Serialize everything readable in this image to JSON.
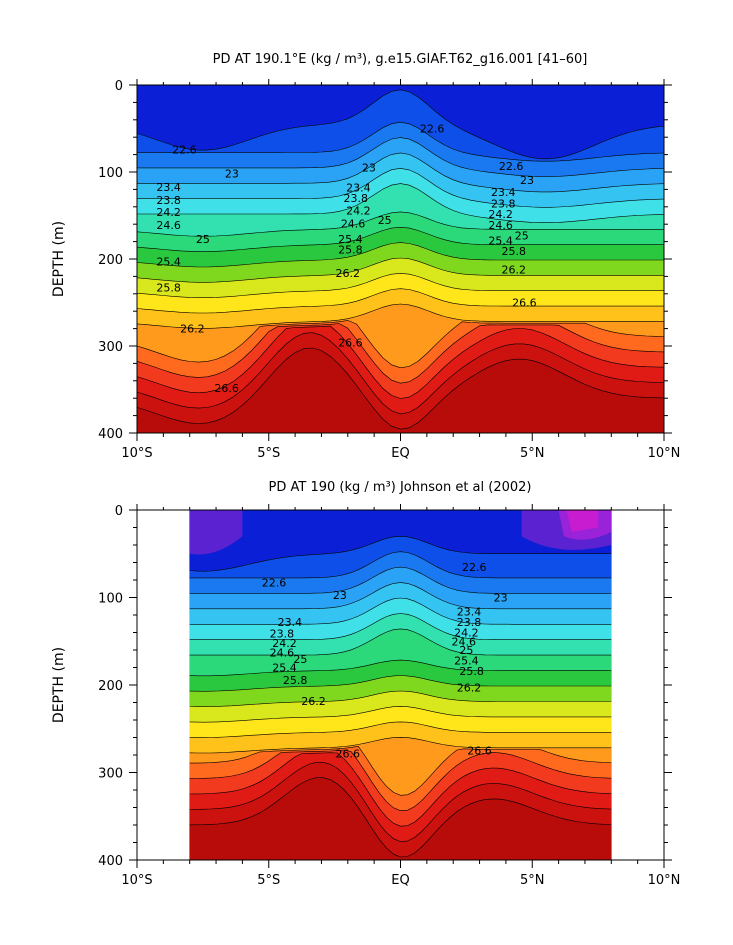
{
  "colors": {
    "levels": [
      "#0a1fd6",
      "#0d4fe8",
      "#1a78f0",
      "#2aa2f5",
      "#35c3f2",
      "#3fe0e8",
      "#33e0b0",
      "#2bd87a",
      "#29c83f",
      "#7fd81e",
      "#d8e81c",
      "#ffe61a",
      "#ffc21a",
      "#ff9a1c",
      "#ff6a1e",
      "#f23a1e",
      "#e01a14",
      "#cc120f",
      "#b80c0a"
    ],
    "purple": [
      "#5a22d0",
      "#9a22d8",
      "#c81cd0"
    ],
    "axis": "#000000"
  },
  "chart_data": [
    {
      "type": "contour",
      "title": "PD AT 190.1°E (kg / m³), g.e15.GIAF.T62_g16.001 [41–60]",
      "xlabel": "",
      "ylabel": "DEPTH (m)",
      "xlim": [
        -10,
        10
      ],
      "ylim": [
        400,
        0
      ],
      "x_ticks": [
        -10,
        -5,
        0,
        5,
        10
      ],
      "x_tick_labels": [
        "10°S",
        "5°S",
        "EQ",
        "5°N",
        "10°N"
      ],
      "y_ticks": [
        0,
        100,
        200,
        300,
        400
      ],
      "y_tick_labels": [
        "0",
        "100",
        "200",
        "300",
        "400"
      ],
      "data_extent_x": [
        -10,
        10
      ],
      "contour_labels": [
        {
          "text": "22.6",
          "x": -8.2,
          "y": 74
        },
        {
          "text": "22.6",
          "x": 1.2,
          "y": 50
        },
        {
          "text": "22.6",
          "x": 4.2,
          "y": 93
        },
        {
          "text": "23",
          "x": -6.4,
          "y": 102
        },
        {
          "text": "23",
          "x": -1.2,
          "y": 95
        },
        {
          "text": "23",
          "x": 4.8,
          "y": 109
        },
        {
          "text": "23.4",
          "x": -8.8,
          "y": 117
        },
        {
          "text": "23.4",
          "x": -1.6,
          "y": 118
        },
        {
          "text": "23.4",
          "x": 3.9,
          "y": 123
        },
        {
          "text": "23.8",
          "x": -8.8,
          "y": 132
        },
        {
          "text": "23.8",
          "x": -1.7,
          "y": 130
        },
        {
          "text": "23.8",
          "x": 3.9,
          "y": 136
        },
        {
          "text": "24.2",
          "x": -8.8,
          "y": 146
        },
        {
          "text": "24.2",
          "x": -1.6,
          "y": 144
        },
        {
          "text": "24.2",
          "x": 3.8,
          "y": 148
        },
        {
          "text": "24.6",
          "x": -8.8,
          "y": 161
        },
        {
          "text": "24.6",
          "x": -1.8,
          "y": 159
        },
        {
          "text": "24.6",
          "x": 3.8,
          "y": 161
        },
        {
          "text": "25",
          "x": -7.5,
          "y": 177
        },
        {
          "text": "25",
          "x": -0.6,
          "y": 155
        },
        {
          "text": "25",
          "x": 4.6,
          "y": 173
        },
        {
          "text": "25.4",
          "x": -8.8,
          "y": 203
        },
        {
          "text": "25.4",
          "x": -1.9,
          "y": 177
        },
        {
          "text": "25.4",
          "x": 3.8,
          "y": 179
        },
        {
          "text": "25.8",
          "x": -8.8,
          "y": 233
        },
        {
          "text": "25.8",
          "x": -1.9,
          "y": 189
        },
        {
          "text": "25.8",
          "x": 4.3,
          "y": 191
        },
        {
          "text": "26.2",
          "x": -7.9,
          "y": 280
        },
        {
          "text": "26.2",
          "x": -2.0,
          "y": 216
        },
        {
          "text": "26.2",
          "x": 4.3,
          "y": 212
        },
        {
          "text": "26.6",
          "x": -6.6,
          "y": 348
        },
        {
          "text": "26.6",
          "x": -1.9,
          "y": 296
        },
        {
          "text": "26.6",
          "x": 4.7,
          "y": 250
        }
      ]
    },
    {
      "type": "contour",
      "title": "PD AT 190 (kg / m³) Johnson et al (2002)",
      "xlabel": "",
      "ylabel": "DEPTH (m)",
      "xlim": [
        -10,
        10
      ],
      "ylim": [
        400,
        0
      ],
      "x_ticks": [
        -10,
        -5,
        0,
        5,
        10
      ],
      "x_tick_labels": [
        "10°S",
        "5°S",
        "EQ",
        "5°N",
        "10°N"
      ],
      "y_ticks": [
        0,
        100,
        200,
        300,
        400
      ],
      "y_tick_labels": [
        "0",
        "100",
        "200",
        "300",
        "400"
      ],
      "data_extent_x": [
        -8,
        8
      ],
      "contour_labels": [
        {
          "text": "22.6",
          "x": -4.8,
          "y": 83
        },
        {
          "text": "22.6",
          "x": 2.8,
          "y": 65
        },
        {
          "text": "23",
          "x": -2.3,
          "y": 97
        },
        {
          "text": "23",
          "x": 3.8,
          "y": 100
        },
        {
          "text": "23.4",
          "x": -4.2,
          "y": 128
        },
        {
          "text": "23.4",
          "x": 2.6,
          "y": 116
        },
        {
          "text": "23.8",
          "x": -4.5,
          "y": 141
        },
        {
          "text": "23.8",
          "x": 2.6,
          "y": 128
        },
        {
          "text": "24.2",
          "x": -4.4,
          "y": 152
        },
        {
          "text": "24.2",
          "x": 2.5,
          "y": 140
        },
        {
          "text": "24.6",
          "x": -4.5,
          "y": 163
        },
        {
          "text": "24.6",
          "x": 2.4,
          "y": 150
        },
        {
          "text": "25",
          "x": -3.8,
          "y": 170
        },
        {
          "text": "25",
          "x": 2.5,
          "y": 160
        },
        {
          "text": "25.4",
          "x": -4.4,
          "y": 180
        },
        {
          "text": "25.4",
          "x": 2.5,
          "y": 172
        },
        {
          "text": "25.8",
          "x": -4.0,
          "y": 194
        },
        {
          "text": "25.8",
          "x": 2.7,
          "y": 184
        },
        {
          "text": "26.2",
          "x": -3.3,
          "y": 218
        },
        {
          "text": "26.2",
          "x": 2.6,
          "y": 203
        },
        {
          "text": "26.6",
          "x": -2.0,
          "y": 278
        },
        {
          "text": "26.6",
          "x": 3.0,
          "y": 275
        }
      ]
    }
  ]
}
